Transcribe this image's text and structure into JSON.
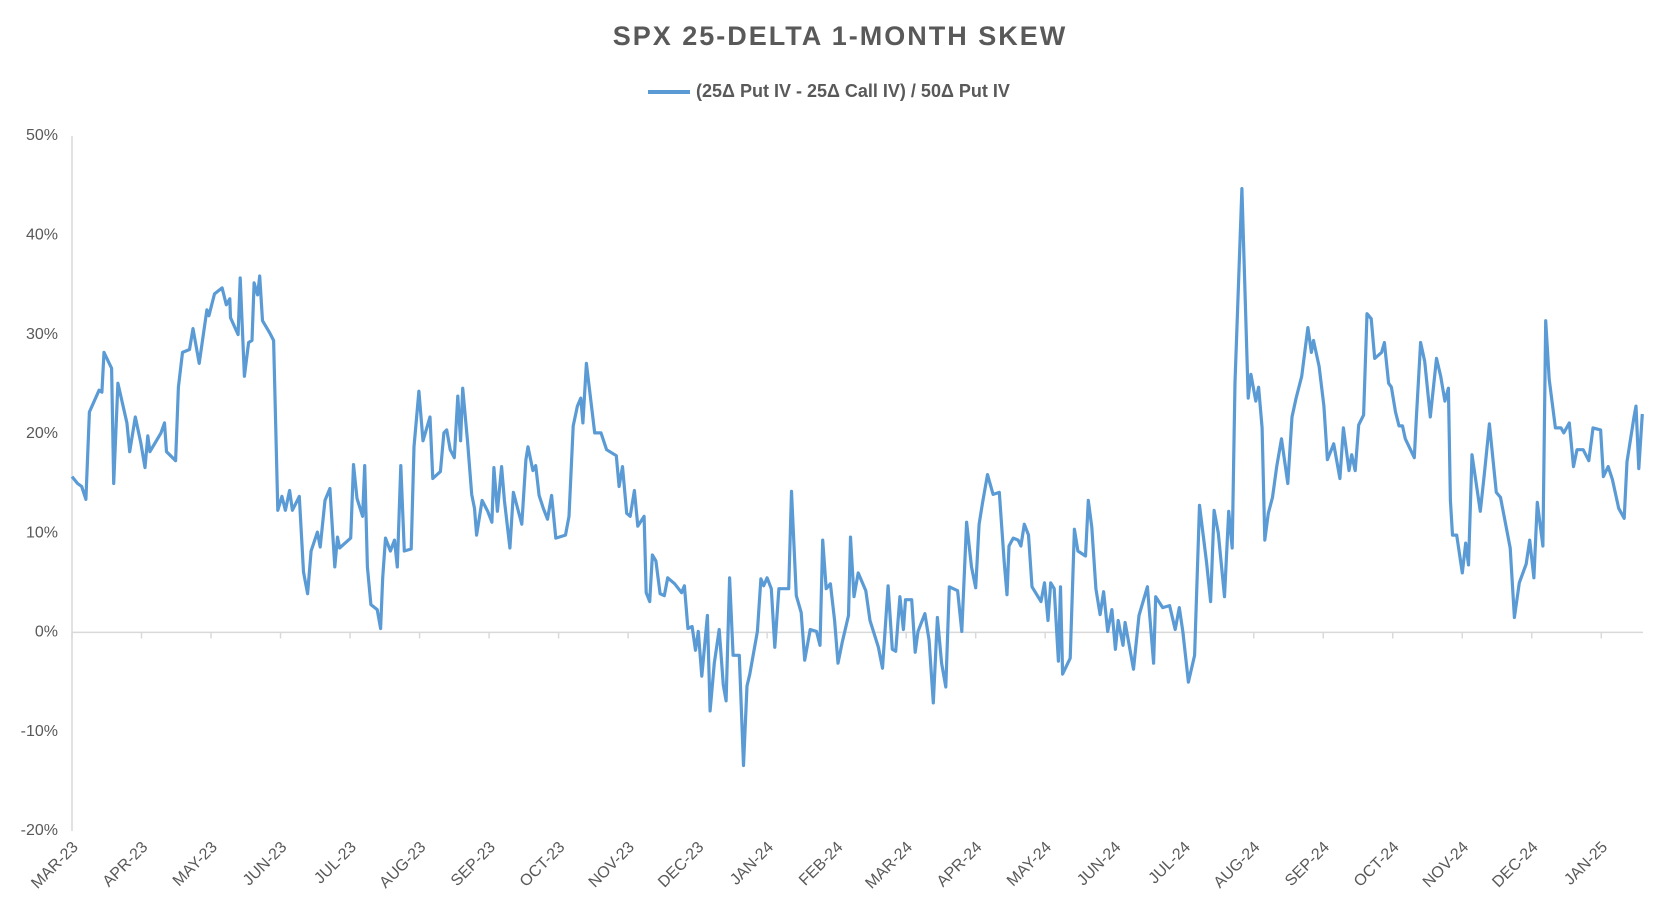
{
  "chart_data": {
    "type": "line",
    "title": "SPX 25-DELTA 1-MONTH SKEW",
    "x": [
      0,
      0.08,
      0.14,
      0.2,
      0.25,
      0.39,
      0.43,
      0.46,
      0.57,
      0.6,
      0.66,
      0.79,
      0.83,
      0.91,
      0.99,
      1.05,
      1.09,
      1.12,
      1.28,
      1.33,
      1.36,
      1.49,
      1.53,
      1.59,
      1.69,
      1.74,
      1.83,
      1.94,
      1.97,
      2.05,
      2.16,
      2.22,
      2.27,
      2.28,
      2.39,
      2.42,
      2.48,
      2.54,
      2.59,
      2.62,
      2.67,
      2.7,
      2.74,
      2.85,
      2.9,
      2.96,
      3.02,
      3.07,
      3.13,
      3.17,
      3.27,
      3.33,
      3.39,
      3.44,
      3.53,
      3.57,
      3.64,
      3.71,
      3.78,
      3.82,
      3.85,
      4.01,
      4.05,
      4.1,
      4.18,
      4.21,
      4.25,
      4.3,
      4.39,
      4.44,
      4.47,
      4.51,
      4.58,
      4.64,
      4.68,
      4.73,
      4.78,
      4.88,
      4.92,
      4.99,
      5.05,
      5.15,
      5.19,
      5.3,
      5.35,
      5.39,
      5.44,
      5.5,
      5.55,
      5.59,
      5.62,
      5.69,
      5.75,
      5.79,
      5.82,
      5.9,
      5.98,
      6.04,
      6.07,
      6.12,
      6.18,
      6.22,
      6.3,
      6.35,
      6.47,
      6.53,
      6.56,
      6.63,
      6.67,
      6.72,
      6.78,
      6.84,
      6.9,
      6.96,
      7.1,
      7.15,
      7.21,
      7.27,
      7.32,
      7.35,
      7.4,
      7.52,
      7.61,
      7.69,
      7.83,
      7.87,
      7.92,
      7.98,
      8.03,
      8.09,
      8.14,
      8.23,
      8.26,
      8.31,
      8.35,
      8.4,
      8.46,
      8.52,
      8.57,
      8.67,
      8.77,
      8.81,
      8.86,
      8.92,
      8.97,
      9.01,
      9.06,
      9.14,
      9.18,
      9.24,
      9.31,
      9.37,
      9.41,
      9.46,
      9.51,
      9.6,
      9.66,
      9.71,
      9.75,
      9.86,
      9.91,
      9.95,
      10.0,
      10.06,
      10.11,
      10.17,
      10.31,
      10.35,
      10.42,
      10.49,
      10.54,
      10.62,
      10.71,
      10.76,
      10.8,
      10.85,
      10.91,
      10.97,
      11.02,
      11.08,
      11.17,
      11.2,
      11.25,
      11.31,
      11.37,
      11.42,
      11.48,
      11.6,
      11.66,
      11.74,
      11.8,
      11.85,
      11.91,
      11.96,
      11.99,
      12.08,
      12.13,
      12.17,
      12.27,
      12.33,
      12.39,
      12.45,
      12.51,
      12.57,
      12.62,
      12.74,
      12.8,
      12.87,
      12.94,
      13.0,
      13.05,
      13.1,
      13.17,
      13.25,
      13.34,
      13.41,
      13.45,
      13.48,
      13.54,
      13.61,
      13.65,
      13.7,
      13.76,
      13.81,
      13.94,
      13.99,
      14.04,
      14.08,
      14.13,
      14.19,
      14.22,
      14.25,
      14.36,
      14.42,
      14.47,
      14.58,
      14.62,
      14.67,
      14.73,
      14.79,
      14.84,
      14.9,
      14.96,
      15.01,
      15.05,
      15.12,
      15.15,
      15.27,
      15.35,
      15.47,
      15.56,
      15.59,
      15.69,
      15.79,
      15.87,
      15.93,
      15.98,
      16.06,
      16.15,
      16.22,
      16.32,
      16.38,
      16.43,
      16.49,
      16.58,
      16.64,
      16.69,
      16.73,
      16.83,
      16.92,
      16.96,
      17.03,
      17.07,
      17.12,
      17.16,
      17.21,
      17.27,
      17.33,
      17.4,
      17.49,
      17.55,
      17.61,
      17.69,
      17.78,
      17.83,
      17.86,
      17.94,
      18.01,
      18.06,
      18.15,
      18.24,
      18.29,
      18.37,
      18.41,
      18.46,
      18.51,
      18.58,
      18.63,
      18.69,
      18.74,
      18.84,
      18.88,
      18.94,
      18.98,
      19.04,
      19.09,
      19.14,
      19.18,
      19.31,
      19.34,
      19.4,
      19.46,
      19.54,
      19.63,
      19.69,
      19.75,
      19.8,
      19.83,
      19.86,
      19.92,
      20.0,
      20.05,
      20.09,
      20.14,
      20.26,
      20.32,
      20.39,
      20.49,
      20.55,
      20.69,
      20.75,
      20.82,
      20.92,
      20.97,
      21.03,
      21.08,
      21.16,
      21.2,
      21.25,
      21.34,
      21.42,
      21.46,
      21.54,
      21.6,
      21.65,
      21.74,
      21.82,
      21.88,
      21.99,
      22.03,
      22.1,
      22.16,
      22.25,
      22.33,
      22.37,
      22.47,
      22.5,
      22.54,
      22.59
    ],
    "series": [
      {
        "name": "(25Δ Put IV - 25Δ Call IV) / 50Δ Put IV",
        "color": "#5b9bd5",
        "values": [
          15.7,
          15,
          14.7,
          13.4,
          22.2,
          24.4,
          24.2,
          28.2,
          26.6,
          15,
          25.1,
          21.1,
          18.2,
          21.7,
          19.1,
          16.6,
          19.8,
          18.2,
          20.1,
          21.1,
          18.2,
          17.3,
          24.7,
          28.2,
          28.5,
          30.6,
          27.1,
          32.5,
          31.9,
          34.1,
          34.7,
          33,
          33.6,
          31.7,
          30,
          35.7,
          25.8,
          29.2,
          29.4,
          35.2,
          34,
          35.9,
          31.4,
          30.1,
          29.4,
          12.3,
          13.7,
          12.3,
          14.3,
          12.3,
          13.7,
          6.1,
          3.9,
          8.2,
          10.1,
          8.6,
          13.3,
          14.5,
          6.6,
          9.6,
          8.5,
          9.5,
          16.9,
          13.5,
          11.7,
          16.8,
          6.6,
          2.8,
          2.3,
          0.4,
          5.5,
          9.5,
          8.2,
          9.3,
          6.6,
          16.8,
          8.2,
          8.4,
          18.7,
          24.3,
          19.3,
          21.7,
          15.5,
          16.2,
          20.1,
          20.4,
          18.4,
          17.6,
          23.8,
          19.3,
          24.6,
          19.3,
          13.9,
          12.5,
          9.8,
          13.3,
          12.2,
          11.1,
          16.6,
          12.2,
          16.7,
          13.3,
          8.5,
          14.1,
          10.9,
          17.4,
          18.7,
          16.3,
          16.8,
          13.8,
          12.5,
          11.4,
          13.8,
          9.5,
          9.8,
          11.7,
          20.8,
          22.8,
          23.6,
          21.1,
          27.1,
          20.1,
          20.1,
          18.4,
          17.8,
          14.7,
          16.7,
          12,
          11.7,
          14.3,
          10.7,
          11.7,
          4,
          3.1,
          7.8,
          7.2,
          3.9,
          3.7,
          5.5,
          4.9,
          4,
          4.7,
          0.4,
          0.6,
          -1.8,
          0.1,
          -4.4,
          1.7,
          -7.9,
          -3.1,
          0.3,
          -5.3,
          -6.9,
          5.5,
          -2.3,
          -2.3,
          -13.4,
          -5.4,
          -4.2,
          0.1,
          5.4,
          4.7,
          5.5,
          4.4,
          -1.5,
          4.4,
          4.4,
          14.2,
          3.7,
          2,
          -2.8,
          0.3,
          0.1,
          -1.3,
          9.3,
          4.4,
          4.9,
          1.2,
          -3.1,
          -1,
          1.7,
          9.6,
          3.6,
          6,
          5,
          4.2,
          1.2,
          -1.5,
          -3.6,
          4.7,
          -1.7,
          -1.9,
          3.6,
          0.3,
          3.3,
          3.3,
          -2,
          0.1,
          1.9,
          -0.8,
          -7.1,
          1.5,
          -3.1,
          -5.5,
          4.6,
          4.2,
          0.1,
          11.1,
          6.6,
          4.5,
          10.9,
          13.1,
          15.9,
          13.9,
          14.1,
          7.1,
          3.8,
          8.7,
          9.5,
          9.3,
          8.7,
          10.9,
          9.8,
          4.6,
          3.1,
          5,
          1.2,
          5,
          4.4,
          -2.9,
          4.6,
          -4.2,
          -2.6,
          10.4,
          8.2,
          7.7,
          13.3,
          10.6,
          4.4,
          1.8,
          4.1,
          0.1,
          2.3,
          -1.7,
          1.2,
          -1.3,
          1,
          -3.7,
          1.7,
          4.6,
          -3.1,
          3.6,
          2.5,
          2.7,
          0.3,
          2.5,
          0.1,
          -5,
          -2.3,
          12.8,
          7.1,
          3.1,
          12.3,
          10,
          3.6,
          12.2,
          8.5,
          25.2,
          44.7,
          23.6,
          26,
          23.3,
          24.7,
          20.6,
          9.3,
          12,
          13.6,
          16.7,
          19.5,
          15,
          21.7,
          23.6,
          25.8,
          30.7,
          28.2,
          29.4,
          26.8,
          22.8,
          17.4,
          19,
          15.5,
          20.6,
          16.3,
          17.9,
          16.3,
          20.9,
          21.9,
          32.1,
          31.6,
          27.6,
          28.2,
          29.2,
          25.1,
          24.7,
          22.2,
          20.8,
          20.8,
          19.5,
          17.6,
          21.7,
          29.2,
          27.3,
          21.7,
          27.6,
          25.8,
          23.3,
          24.6,
          13.3,
          9.8,
          9.8,
          6,
          9,
          6.8,
          17.9,
          12.2,
          16.1,
          21,
          14.1,
          13.6,
          8.5,
          1.5,
          5,
          6.9,
          9.3,
          5.5,
          13.1,
          8.7,
          31.4,
          25.5,
          20.6,
          20.6,
          20.1,
          21.1,
          16.7,
          18.4,
          18.4,
          17.3,
          20.6,
          20.4,
          15.7,
          16.7,
          15.4,
          12.5,
          11.5,
          17.2,
          21.7,
          22.8,
          16.5,
          22
        ]
      }
    ],
    "xlim": [
      0,
      22.6
    ],
    "xticks": [
      {
        "value": 0,
        "label": "MAR-23"
      },
      {
        "value": 1,
        "label": "APR-23"
      },
      {
        "value": 2,
        "label": "MAY-23"
      },
      {
        "value": 3,
        "label": "JUN-23"
      },
      {
        "value": 4,
        "label": "JUL-23"
      },
      {
        "value": 5,
        "label": "AUG-23"
      },
      {
        "value": 6,
        "label": "SEP-23"
      },
      {
        "value": 7,
        "label": "OCT-23"
      },
      {
        "value": 8,
        "label": "NOV-23"
      },
      {
        "value": 9,
        "label": "DEC-23"
      },
      {
        "value": 10,
        "label": "JAN-24"
      },
      {
        "value": 11,
        "label": "FEB-24"
      },
      {
        "value": 12,
        "label": "MAR-24"
      },
      {
        "value": 13,
        "label": "APR-24"
      },
      {
        "value": 14,
        "label": "MAY-24"
      },
      {
        "value": 15,
        "label": "JUN-24"
      },
      {
        "value": 16,
        "label": "JUL-24"
      },
      {
        "value": 17,
        "label": "AUG-24"
      },
      {
        "value": 18,
        "label": "SEP-24"
      },
      {
        "value": 19,
        "label": "OCT-24"
      },
      {
        "value": 20,
        "label": "NOV-24"
      },
      {
        "value": 21,
        "label": "DEC-24"
      },
      {
        "value": 22,
        "label": "JAN-25"
      }
    ],
    "ylim": [
      -20,
      50
    ],
    "yticks": [
      {
        "value": -20,
        "label": "-20%"
      },
      {
        "value": -10,
        "label": "-10%"
      },
      {
        "value": 0,
        "label": "0%"
      },
      {
        "value": 10,
        "label": "10%"
      },
      {
        "value": 20,
        "label": "20%"
      },
      {
        "value": 30,
        "label": "30%"
      },
      {
        "value": 40,
        "label": "40%"
      },
      {
        "value": 50,
        "label": "50%"
      }
    ],
    "grid": false,
    "legend": "top"
  }
}
